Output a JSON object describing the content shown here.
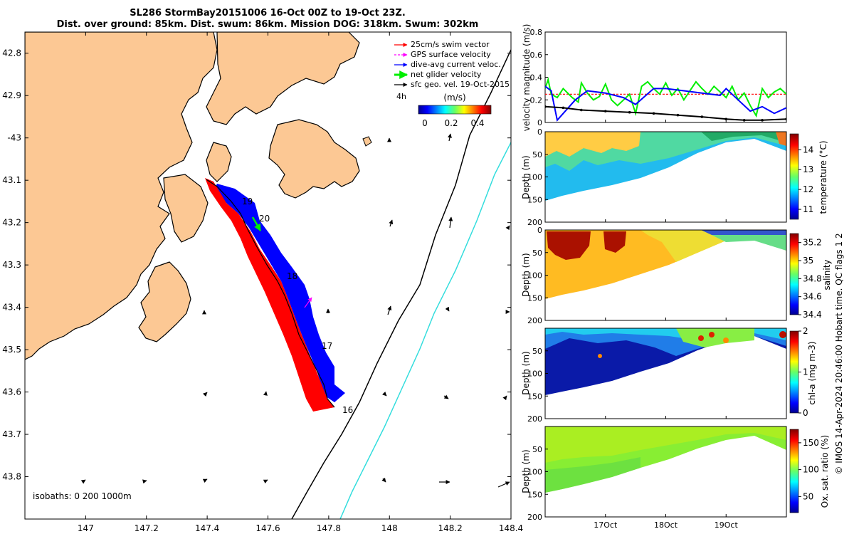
{
  "title": {
    "line1": "SL286 StormBay20151006 16-Oct 00Z to 19-Oct 23Z.",
    "line2": "Dist. over ground: 85km. Dist. swum: 86km. Mission DOG: 318km. Swum: 302km"
  },
  "credit": "© IMOS 14-Apr-2024 20:46:00 Hobart time. QC flags 1  2",
  "colors": {
    "land": "#fcc894",
    "coast": "#000000",
    "swim": "#ff0000",
    "gps": "#ff00ff",
    "diveavg": "#0000ff",
    "net": "#00ee00",
    "geo": "#000000",
    "isobath1000": "#33dddd"
  },
  "chart_data": [
    {
      "type": "scatter",
      "id": "map",
      "title": "",
      "xlabel": "",
      "ylabel": "",
      "xlim": [
        146.8,
        148.4
      ],
      "ylim": [
        -43.9,
        -42.75
      ],
      "xticks": [
        147,
        147.2,
        147.4,
        147.6,
        147.8,
        148,
        148.2,
        148.4
      ],
      "xtick_labels": [
        "147",
        "147.2",
        "147.4",
        "147.6",
        "147.8",
        "148",
        "148.2",
        "148.4"
      ],
      "yticks": [
        -42.8,
        -42.9,
        -43,
        -43.1,
        -43.2,
        -43.3,
        -43.4,
        -43.5,
        -43.6,
        -43.7,
        -43.8
      ],
      "ytick_labels": [
        "42.8",
        "42.9",
        "-43",
        "43.1",
        "43.2",
        "43.3",
        "43.4",
        "43.5",
        "43.6",
        "43.7",
        "43.8"
      ],
      "isobath_label": "isobaths: 0   200  1000m",
      "legend": [
        {
          "label": "25cm/s swim vector",
          "color": "#ff0000",
          "kind": "arrow"
        },
        {
          "label": "GPS surface velocity",
          "color": "#ff00ff",
          "kind": "dash"
        },
        {
          "label": "dive-avg current veloc.",
          "color": "#0000ff",
          "kind": "arrow"
        },
        {
          "label": "net glider velocity",
          "color": "#00ee00",
          "kind": "thick"
        },
        {
          "label": "sfc geo. vel. 19-Oct-2015",
          "color": "#000000",
          "kind": "arrow"
        }
      ],
      "legend_interval": "4h",
      "colorbar_units": "(m/s)",
      "colorbar_ticks": [
        "0",
        "0.2",
        "0.4"
      ],
      "track_day_labels": [
        "16",
        "17",
        "18",
        "19",
        "20"
      ],
      "track": [
        {
          "lon": 147.83,
          "lat": -43.62
        },
        {
          "lon": 147.8,
          "lat": -43.58
        },
        {
          "lon": 147.78,
          "lat": -43.52
        },
        {
          "lon": 147.75,
          "lat": -43.48
        },
        {
          "lon": 147.72,
          "lat": -43.42
        },
        {
          "lon": 147.69,
          "lat": -43.36
        },
        {
          "lon": 147.64,
          "lat": -43.3
        },
        {
          "lon": 147.59,
          "lat": -43.23
        },
        {
          "lon": 147.55,
          "lat": -43.17
        },
        {
          "lon": 147.48,
          "lat": -43.12
        },
        {
          "lon": 147.43,
          "lat": -43.09
        }
      ]
    },
    {
      "type": "line",
      "id": "velocity",
      "ylabel": "velocity magnitude (m/s)",
      "ylim": [
        0,
        0.8
      ],
      "yticks": [
        0,
        0.2,
        0.4,
        0.6,
        0.8
      ],
      "ytick_labels": [
        "0",
        "0.2",
        "0.4",
        "0.6",
        "0.8"
      ],
      "xlim": [
        0,
        4
      ],
      "series": [
        {
          "name": "swim speed",
          "color": "#ff0000",
          "x": [
            0,
            0.5,
            1,
            1.5,
            2,
            2.5,
            3,
            3.5,
            4
          ],
          "values": [
            0.25,
            0.25,
            0.25,
            0.25,
            0.25,
            0.25,
            0.25,
            0.25,
            0.25
          ]
        },
        {
          "name": "net glider velocity",
          "color": "#00ee00",
          "x": [
            0,
            0.05,
            0.1,
            0.2,
            0.3,
            0.45,
            0.55,
            0.6,
            0.7,
            0.8,
            0.9,
            1.0,
            1.1,
            1.2,
            1.3,
            1.4,
            1.5,
            1.6,
            1.7,
            1.8,
            1.9,
            2.0,
            2.1,
            2.2,
            2.3,
            2.4,
            2.5,
            2.6,
            2.7,
            2.8,
            2.9,
            3.0,
            3.1,
            3.2,
            3.3,
            3.4,
            3.5,
            3.6,
            3.7,
            3.8,
            3.9,
            4.0
          ],
          "values": [
            0.3,
            0.38,
            0.25,
            0.22,
            0.3,
            0.22,
            0.18,
            0.35,
            0.26,
            0.2,
            0.23,
            0.34,
            0.2,
            0.15,
            0.2,
            0.25,
            0.08,
            0.32,
            0.36,
            0.3,
            0.25,
            0.35,
            0.24,
            0.3,
            0.2,
            0.28,
            0.36,
            0.3,
            0.25,
            0.32,
            0.27,
            0.22,
            0.32,
            0.2,
            0.26,
            0.15,
            0.06,
            0.3,
            0.22,
            0.27,
            0.3,
            0.25
          ]
        },
        {
          "name": "dive-avg current",
          "color": "#0000ff",
          "x": [
            0,
            0.1,
            0.2,
            0.3,
            0.5,
            0.7,
            1.0,
            1.3,
            1.5,
            1.8,
            2.0,
            2.3,
            2.6,
            2.9,
            3.0,
            3.2,
            3.4,
            3.6,
            3.8,
            4.0
          ],
          "values": [
            0.32,
            0.28,
            0.02,
            0.08,
            0.2,
            0.28,
            0.26,
            0.22,
            0.16,
            0.3,
            0.3,
            0.28,
            0.26,
            0.24,
            0.3,
            0.2,
            0.1,
            0.14,
            0.08,
            0.13
          ]
        },
        {
          "name": "sfc geo. vel.",
          "color": "#000000",
          "x": [
            0,
            0.3,
            0.6,
            1.0,
            1.4,
            1.8,
            2.2,
            2.6,
            3.0,
            3.3,
            3.6,
            4.0
          ],
          "values": [
            0.14,
            0.13,
            0.11,
            0.1,
            0.09,
            0.08,
            0.065,
            0.05,
            0.03,
            0.02,
            0.02,
            0.03
          ]
        }
      ]
    },
    {
      "type": "heatmap",
      "id": "temperature",
      "ylabel": "Depth (m)",
      "colorbar_label": "temperature (°C)",
      "clim": [
        10.5,
        14.8
      ],
      "colorbar_ticks": [
        "11",
        "12",
        "13",
        "14"
      ],
      "colorbar_tick_values": [
        11,
        12,
        13,
        14
      ],
      "ylim": [
        0,
        200
      ],
      "yticks": [
        "0",
        "50",
        "100",
        "150",
        "200"
      ],
      "xtick_labels": []
    },
    {
      "type": "heatmap",
      "id": "salinity",
      "ylabel": "Depth (m)",
      "colorbar_label": "salinity",
      "clim": [
        34.4,
        35.3
      ],
      "colorbar_ticks": [
        "34.4",
        "34.6",
        "34.8",
        "35",
        "35.2"
      ],
      "colorbar_tick_values": [
        34.4,
        34.6,
        34.8,
        35,
        35.2
      ],
      "ylim": [
        0,
        200
      ],
      "yticks": [
        "0",
        "50",
        "100",
        "150",
        "200"
      ],
      "xtick_labels": []
    },
    {
      "type": "heatmap",
      "id": "chla",
      "ylabel": "Depth (m)",
      "colorbar_label": "chl-a (mg m-3)",
      "clim": [
        0,
        2
      ],
      "colorbar_ticks": [
        "0",
        "1",
        "2"
      ],
      "colorbar_tick_values": [
        0,
        1,
        2
      ],
      "ylim": [
        0,
        200
      ],
      "yticks": [
        "50",
        "100",
        "150",
        "200"
      ],
      "xtick_labels": []
    },
    {
      "type": "heatmap",
      "id": "oxygen",
      "ylabel": "Depth (m)",
      "colorbar_label": "Ox. sat. ratio (%)",
      "clim": [
        20,
        175
      ],
      "colorbar_ticks": [
        "50",
        "100",
        "150"
      ],
      "colorbar_tick_values": [
        50,
        100,
        150
      ],
      "ylim": [
        0,
        200
      ],
      "yticks": [
        "50",
        "100",
        "150",
        "200"
      ],
      "xtick_labels": [
        "17Oct",
        "18Oct",
        "19Oct"
      ],
      "xtick_values": [
        1,
        2,
        3
      ]
    }
  ]
}
